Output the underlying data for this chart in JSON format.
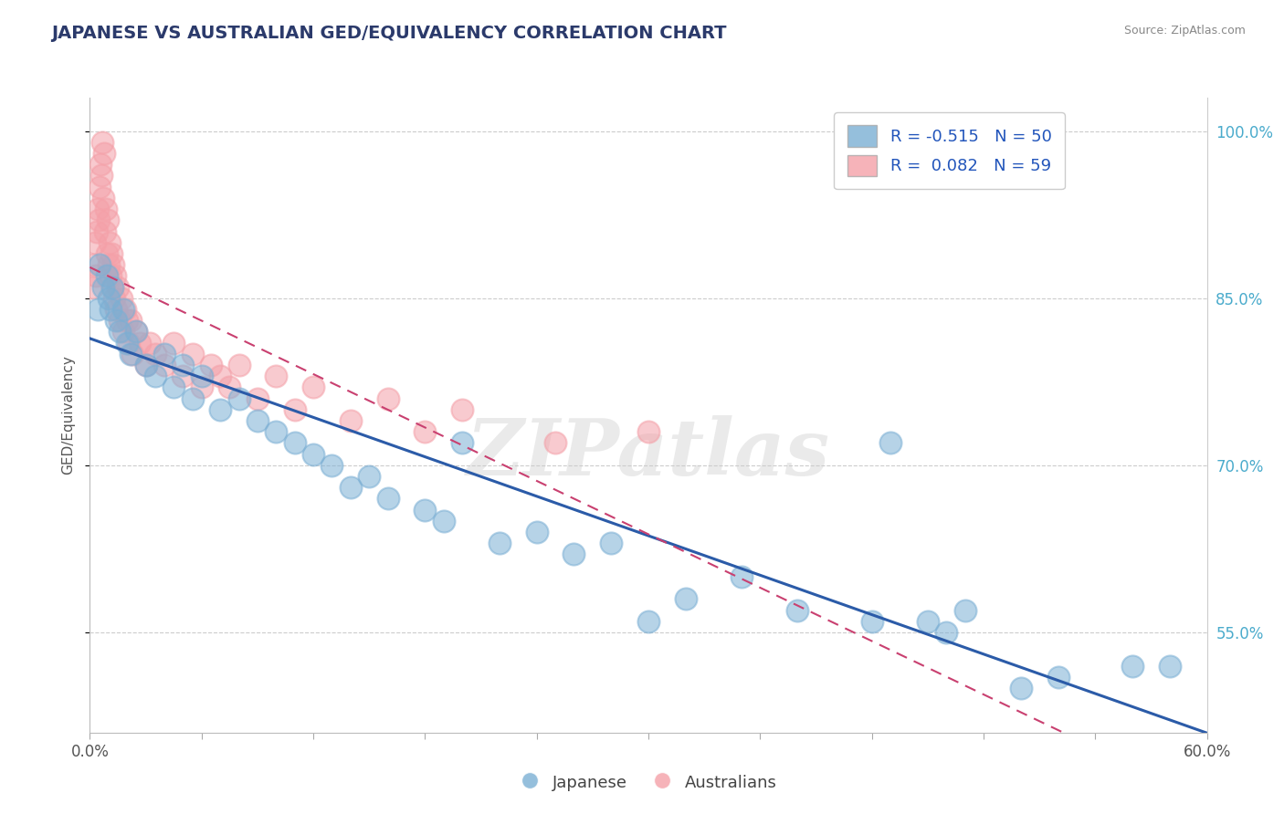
{
  "title": "JAPANESE VS AUSTRALIAN GED/EQUIVALENCY CORRELATION CHART",
  "source": "Source: ZipAtlas.com",
  "ylabel": "GED/Equivalency",
  "xlim": [
    0.0,
    60.0
  ],
  "ylim": [
    46.0,
    103.0
  ],
  "x_tick_positions": [
    0.0,
    6.0,
    12.0,
    18.0,
    24.0,
    30.0,
    36.0,
    42.0,
    48.0,
    54.0,
    60.0
  ],
  "x_label_only_ends": true,
  "y_ticks_right": [
    55.0,
    70.0,
    85.0,
    100.0
  ],
  "japanese_R": -0.515,
  "japanese_N": 50,
  "australian_R": 0.082,
  "australian_N": 59,
  "japanese_color": "#7BAFD4",
  "australian_color": "#F4A0A8",
  "japanese_trend_color": "#2B5BA8",
  "australian_trend_color": "#C94070",
  "watermark": "ZIPatlas",
  "background_color": "#FFFFFF",
  "grid_color": "#CCCCCC",
  "japanese_x": [
    0.4,
    0.5,
    0.7,
    0.9,
    1.0,
    1.1,
    1.2,
    1.4,
    1.6,
    1.8,
    2.0,
    2.2,
    2.5,
    3.0,
    3.5,
    4.0,
    4.5,
    5.0,
    5.5,
    6.0,
    7.0,
    8.0,
    9.0,
    10.0,
    11.0,
    12.0,
    13.0,
    14.0,
    15.0,
    16.0,
    18.0,
    19.0,
    20.0,
    22.0,
    24.0,
    26.0,
    28.0,
    30.0,
    32.0,
    35.0,
    38.0,
    42.0,
    43.0,
    45.0,
    46.0,
    47.0,
    50.0,
    52.0,
    56.0,
    58.0
  ],
  "japanese_y": [
    84.0,
    88.0,
    86.0,
    87.0,
    85.0,
    84.0,
    86.0,
    83.0,
    82.0,
    84.0,
    81.0,
    80.0,
    82.0,
    79.0,
    78.0,
    80.0,
    77.0,
    79.0,
    76.0,
    78.0,
    75.0,
    76.0,
    74.0,
    73.0,
    72.0,
    71.0,
    70.0,
    68.0,
    69.0,
    67.0,
    66.0,
    65.0,
    72.0,
    63.0,
    64.0,
    62.0,
    63.0,
    56.0,
    58.0,
    60.0,
    57.0,
    56.0,
    72.0,
    56.0,
    55.0,
    57.0,
    50.0,
    51.0,
    52.0,
    52.0
  ],
  "australian_x": [
    0.15,
    0.2,
    0.25,
    0.3,
    0.35,
    0.4,
    0.45,
    0.5,
    0.55,
    0.6,
    0.65,
    0.7,
    0.75,
    0.8,
    0.85,
    0.9,
    0.95,
    1.0,
    1.05,
    1.1,
    1.15,
    1.2,
    1.25,
    1.3,
    1.35,
    1.4,
    1.5,
    1.6,
    1.7,
    1.8,
    1.9,
    2.0,
    2.1,
    2.2,
    2.3,
    2.5,
    2.7,
    3.0,
    3.2,
    3.5,
    4.0,
    4.5,
    5.0,
    5.5,
    6.0,
    6.5,
    7.0,
    7.5,
    8.0,
    9.0,
    10.0,
    11.0,
    12.0,
    14.0,
    16.0,
    18.0,
    20.0,
    25.0,
    30.0
  ],
  "australian_y": [
    86.0,
    88.0,
    90.0,
    87.0,
    91.0,
    93.0,
    92.0,
    95.0,
    97.0,
    96.0,
    99.0,
    94.0,
    98.0,
    91.0,
    93.0,
    89.0,
    92.0,
    88.0,
    90.0,
    87.0,
    89.0,
    86.0,
    88.0,
    85.0,
    87.0,
    84.0,
    86.0,
    83.0,
    85.0,
    82.0,
    84.0,
    83.0,
    81.0,
    83.0,
    80.0,
    82.0,
    81.0,
    79.0,
    81.0,
    80.0,
    79.0,
    81.0,
    78.0,
    80.0,
    77.0,
    79.0,
    78.0,
    77.0,
    79.0,
    76.0,
    78.0,
    75.0,
    77.0,
    74.0,
    76.0,
    73.0,
    75.0,
    72.0,
    73.0
  ]
}
